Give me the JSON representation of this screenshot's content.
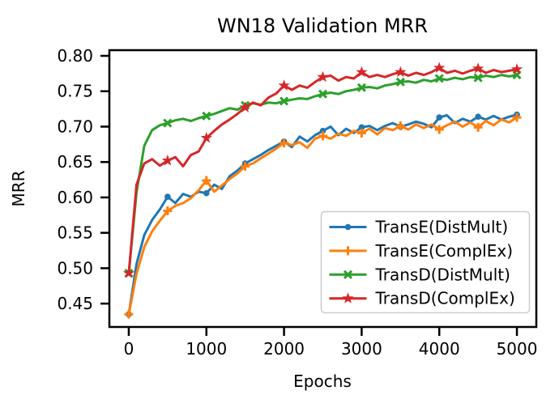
{
  "chart_data": {
    "type": "line",
    "title": "WN18 Validation MRR",
    "xlabel": "Epochs",
    "ylabel": "MRR",
    "xlim": [
      -250,
      5250
    ],
    "ylim": [
      0.417,
      0.808
    ],
    "xticks": [
      0,
      1000,
      2000,
      3000,
      4000,
      5000
    ],
    "yticks": [
      0.45,
      0.5,
      0.55,
      0.6,
      0.65,
      0.7,
      0.75,
      0.8
    ],
    "grid": false,
    "legend_position": "lower-right-inside",
    "marker_every_epochs": 500,
    "x": [
      0,
      100,
      200,
      300,
      400,
      500,
      600,
      700,
      800,
      900,
      1000,
      1100,
      1200,
      1300,
      1400,
      1500,
      1600,
      1700,
      1800,
      1900,
      2000,
      2100,
      2200,
      2300,
      2400,
      2500,
      2600,
      2700,
      2800,
      2900,
      3000,
      3100,
      3200,
      3300,
      3400,
      3500,
      3600,
      3700,
      3800,
      3900,
      4000,
      4100,
      4200,
      4300,
      4400,
      4500,
      4600,
      4700,
      4800,
      4900,
      5000
    ],
    "series": [
      {
        "name": "TransE(DistMult)",
        "color": "#1f77b4",
        "marker": "circle",
        "values": [
          0.435,
          0.506,
          0.547,
          0.568,
          0.583,
          0.601,
          0.592,
          0.605,
          0.601,
          0.608,
          0.606,
          0.618,
          0.612,
          0.63,
          0.638,
          0.648,
          0.654,
          0.66,
          0.667,
          0.673,
          0.679,
          0.671,
          0.686,
          0.679,
          0.688,
          0.694,
          0.7,
          0.688,
          0.697,
          0.691,
          0.699,
          0.701,
          0.695,
          0.701,
          0.705,
          0.7,
          0.703,
          0.707,
          0.704,
          0.699,
          0.713,
          0.716,
          0.705,
          0.711,
          0.707,
          0.714,
          0.71,
          0.715,
          0.71,
          0.714,
          0.717
        ]
      },
      {
        "name": "TransE(ComplEx)",
        "color": "#ff7f0e",
        "marker": "plus",
        "values": [
          0.435,
          0.492,
          0.53,
          0.552,
          0.567,
          0.581,
          0.588,
          0.592,
          0.599,
          0.61,
          0.624,
          0.608,
          0.617,
          0.626,
          0.634,
          0.644,
          0.648,
          0.655,
          0.662,
          0.669,
          0.677,
          0.674,
          0.678,
          0.67,
          0.683,
          0.687,
          0.683,
          0.69,
          0.687,
          0.694,
          0.691,
          0.697,
          0.689,
          0.698,
          0.695,
          0.701,
          0.696,
          0.703,
          0.698,
          0.703,
          0.696,
          0.702,
          0.707,
          0.7,
          0.706,
          0.699,
          0.708,
          0.702,
          0.71,
          0.706,
          0.713
        ]
      },
      {
        "name": "TransD(DistMult)",
        "color": "#2ca02c",
        "marker": "x",
        "values": [
          0.493,
          0.607,
          0.673,
          0.695,
          0.702,
          0.705,
          0.709,
          0.711,
          0.708,
          0.712,
          0.715,
          0.718,
          0.722,
          0.726,
          0.724,
          0.73,
          0.733,
          0.731,
          0.734,
          0.733,
          0.736,
          0.738,
          0.74,
          0.739,
          0.743,
          0.746,
          0.748,
          0.746,
          0.75,
          0.752,
          0.755,
          0.756,
          0.754,
          0.758,
          0.76,
          0.763,
          0.764,
          0.762,
          0.766,
          0.764,
          0.768,
          0.766,
          0.769,
          0.767,
          0.77,
          0.769,
          0.772,
          0.77,
          0.773,
          0.771,
          0.773
        ]
      },
      {
        "name": "TransD(ComplEx)",
        "color": "#d62728",
        "marker": "star",
        "values": [
          0.493,
          0.618,
          0.648,
          0.654,
          0.645,
          0.652,
          0.657,
          0.644,
          0.66,
          0.665,
          0.684,
          0.694,
          0.703,
          0.71,
          0.718,
          0.727,
          0.734,
          0.73,
          0.741,
          0.747,
          0.758,
          0.752,
          0.758,
          0.755,
          0.763,
          0.77,
          0.772,
          0.765,
          0.77,
          0.768,
          0.777,
          0.77,
          0.773,
          0.77,
          0.774,
          0.777,
          0.772,
          0.776,
          0.773,
          0.777,
          0.783,
          0.776,
          0.779,
          0.775,
          0.779,
          0.782,
          0.776,
          0.78,
          0.777,
          0.779,
          0.781
        ]
      }
    ],
    "styles": {
      "spine_color": "#000000",
      "tick_color": "#000000",
      "legend_border_color": "#cccccc",
      "legend_bg_color": "#ffffff"
    }
  }
}
